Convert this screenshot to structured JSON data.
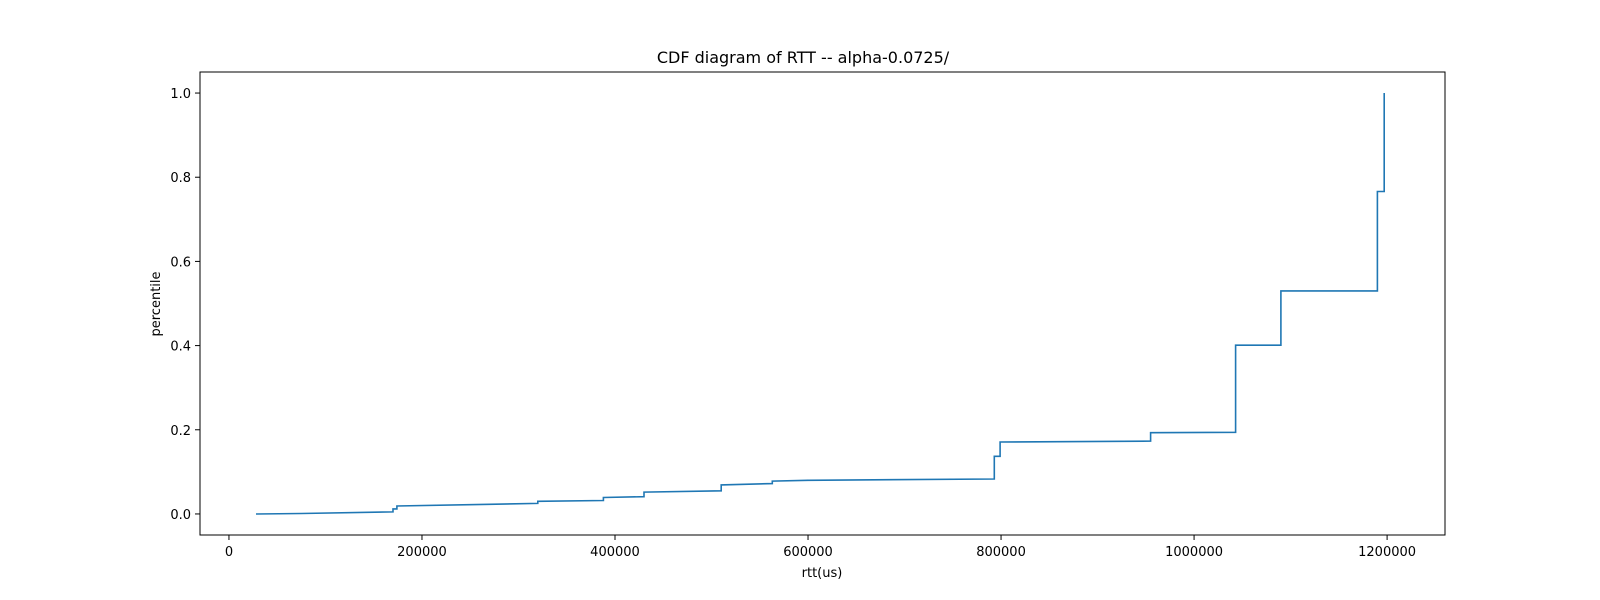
{
  "chart_data": {
    "type": "line",
    "title": "CDF diagram of RTT -- alpha-0.0725/",
    "xlabel": "rtt(us)",
    "ylabel": "percentile",
    "xlim": [
      -30000,
      1260000
    ],
    "ylim": [
      -0.05,
      1.05
    ],
    "xticks": [
      0,
      200000,
      400000,
      600000,
      800000,
      1000000,
      1200000
    ],
    "xtick_labels": [
      "0",
      "200000",
      "400000",
      "600000",
      "800000",
      "1000000",
      "1200000"
    ],
    "yticks": [
      0.0,
      0.2,
      0.4,
      0.6,
      0.8,
      1.0
    ],
    "ytick_labels": [
      "0.0",
      "0.2",
      "0.4",
      "0.6",
      "0.8",
      "1.0"
    ],
    "grid": false,
    "color": "#1f77b4",
    "series": [
      {
        "x": [
          28000,
          75000,
          170000,
          170000,
          174000,
          174000,
          270000,
          320000,
          320000,
          388000,
          388000,
          430000,
          430000,
          510000,
          510000,
          563000,
          563000,
          600000,
          793000,
          793000,
          799000,
          799000,
          955000,
          955000,
          1043000,
          1043000,
          1090000,
          1090000,
          1190000,
          1190000,
          1197000,
          1197000
        ],
        "y": [
          0.0,
          0.001,
          0.005,
          0.012,
          0.012,
          0.019,
          0.023,
          0.025,
          0.03,
          0.032,
          0.039,
          0.041,
          0.052,
          0.055,
          0.069,
          0.072,
          0.078,
          0.08,
          0.083,
          0.137,
          0.137,
          0.171,
          0.173,
          0.193,
          0.194,
          0.401,
          0.401,
          0.53,
          0.53,
          0.766,
          0.766,
          1.0
        ]
      }
    ]
  }
}
